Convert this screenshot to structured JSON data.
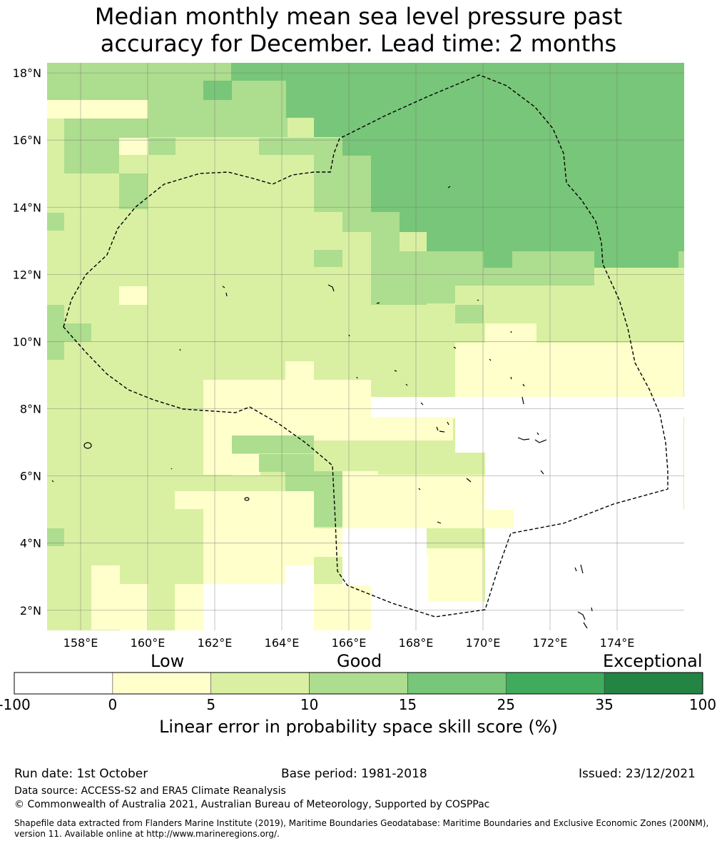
{
  "title": {
    "line1": "Median monthly mean sea level pressure past",
    "line2": "accuracy for December. Lead time: 2 months"
  },
  "map": {
    "lon_range": [
      157,
      176
    ],
    "lat_range": [
      1.4,
      18.3
    ],
    "lon_ticks": [
      "158°E",
      "160°E",
      "162°E",
      "164°E",
      "166°E",
      "168°E",
      "170°E",
      "172°E",
      "174°E"
    ],
    "lat_ticks": [
      "18°N",
      "16°N",
      "14°N",
      "12°N",
      "10°N",
      "8°N",
      "6°N",
      "4°N",
      "2°N"
    ],
    "grid": true,
    "boundary_label": "EEZ boundary (dashed)",
    "colors": {
      "band0": "#ffffff",
      "band1": "#ffffcc",
      "band2": "#d9f0a3",
      "band3": "#addd8e",
      "band4": "#78c679",
      "band5": "#41ab5d",
      "band6": "#238443"
    }
  },
  "colorbar": {
    "category_labels": {
      "low": "Low",
      "good": "Good",
      "exceptional": "Exceptional"
    },
    "boundaries": [
      "-100",
      "0",
      "5",
      "10",
      "15",
      "25",
      "35",
      "100"
    ],
    "colors": [
      "#ffffff",
      "#ffffcc",
      "#d9f0a3",
      "#addd8e",
      "#78c679",
      "#41ab5d",
      "#238443"
    ],
    "title": "Linear error in probability space skill score (%)"
  },
  "footer": {
    "run_date": "Run date: 1st October",
    "base_period": "Base period: 1981-2018",
    "issued": "Issued: 23/12/2021",
    "data_source": "Data source: ACCESS-S2 and ERA5 Climate Reanalysis",
    "copyright": "© Commonwealth of Australia 2021, Australian Bureau of Meteorology, Supported by COSPPac",
    "shapefile": "Shapefile data extracted from Flanders Marine Institute (2019), Maritime Boundaries Geodatabase: Maritime Boundaries and Exclusive Economic Zones (200NM), version 11. Available online at http://www.marineregions.org/."
  }
}
